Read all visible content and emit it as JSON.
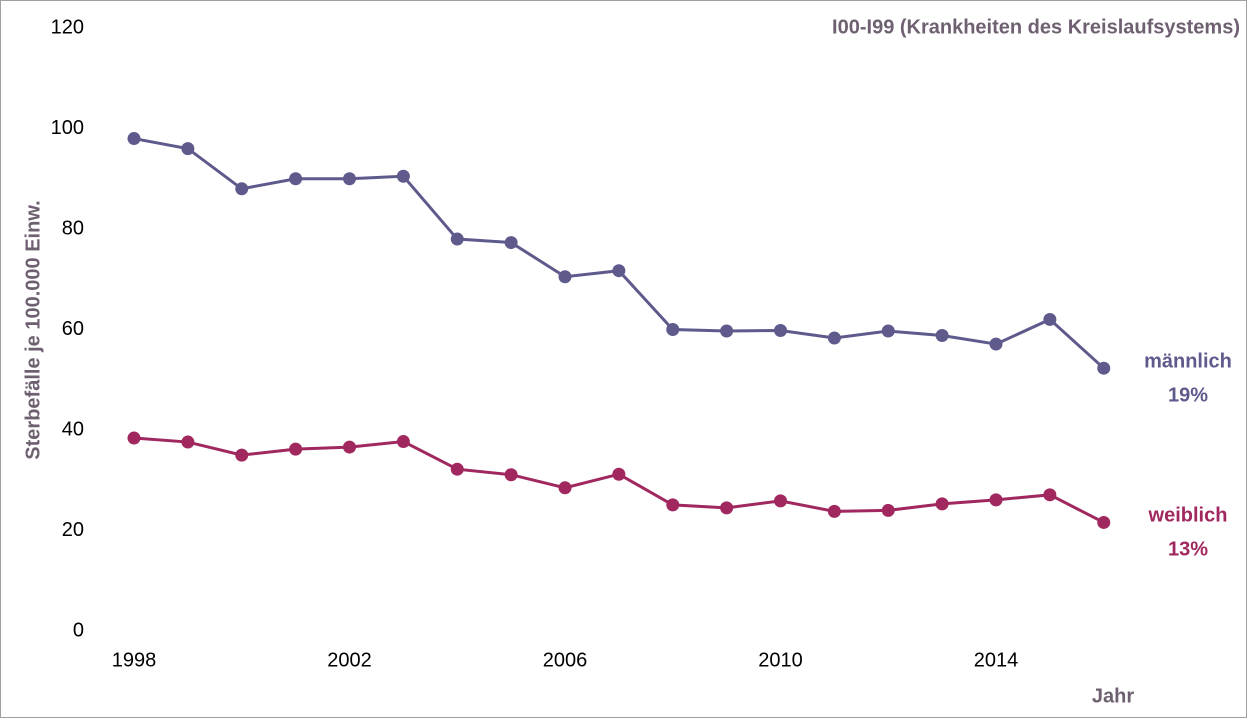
{
  "chart_data": {
    "type": "line",
    "title": "I00-I99 (Krankheiten des Kreislaufsystems)",
    "y_label": "Sterbefälle je 100.000 Einw.",
    "x_label": "Jahr",
    "x": [
      1998,
      1999,
      2000,
      2001,
      2002,
      2003,
      2004,
      2005,
      2006,
      2007,
      2008,
      2009,
      2010,
      2011,
      2012,
      2013,
      2014,
      2015,
      2016
    ],
    "series": [
      {
        "name": "männlich",
        "annotation": "19%",
        "color": "#5e5a8c",
        "values": [
          98,
          96,
          88,
          90,
          90,
          90.5,
          78,
          77.3,
          70.5,
          71.7,
          60,
          59.7,
          59.8,
          58.3,
          59.7,
          58.8,
          57.1,
          62,
          52.3
        ]
      },
      {
        "name": "weiblich",
        "annotation": "13%",
        "color": "#a0285f",
        "values": [
          38.4,
          37.6,
          35,
          36.2,
          36.6,
          37.7,
          32.2,
          31.1,
          28.5,
          31.2,
          25.1,
          24.5,
          25.9,
          23.8,
          24,
          25.3,
          26.1,
          27.1,
          21.6
        ]
      }
    ],
    "xlim": [
      1996,
      2018
    ],
    "xticks": [
      1998,
      2002,
      2006,
      2010,
      2014
    ],
    "ylim": [
      0,
      120
    ],
    "yticks": [
      0,
      20,
      40,
      60,
      80,
      100,
      120
    ],
    "grid": false
  }
}
